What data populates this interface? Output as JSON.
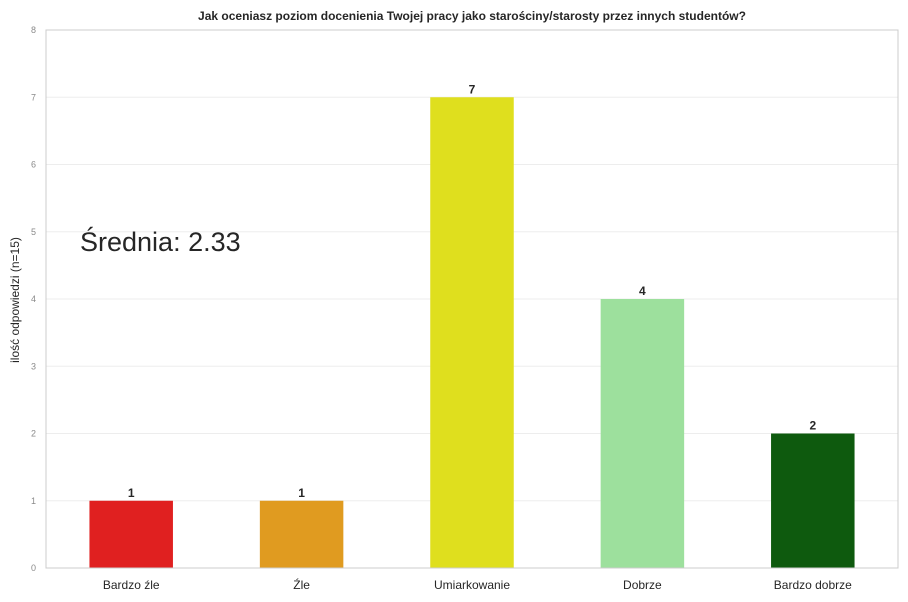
{
  "chart_data": {
    "type": "bar",
    "title": "Jak oceniasz poziom docenienia Twojej pracy jako starościny/starosty przez innych studentów?",
    "xlabel": "",
    "ylabel": "ilość odpowiedzi (n=15)",
    "categories": [
      "Bardzo źle",
      "Źle",
      "Umiarkowanie",
      "Dobrze",
      "Bardzo dobrze"
    ],
    "values": [
      1,
      1,
      7,
      4,
      2
    ],
    "colors": [
      "#e02020",
      "#e09b20",
      "#dfdf1e",
      "#9de09d",
      "#0e5a0e"
    ],
    "ylim": [
      0,
      8
    ],
    "yticks": [
      "0",
      "1",
      "2",
      "3",
      "4",
      "5",
      "6",
      "7",
      "8"
    ],
    "grid": true,
    "annotation": "Średnia: 2.33"
  }
}
